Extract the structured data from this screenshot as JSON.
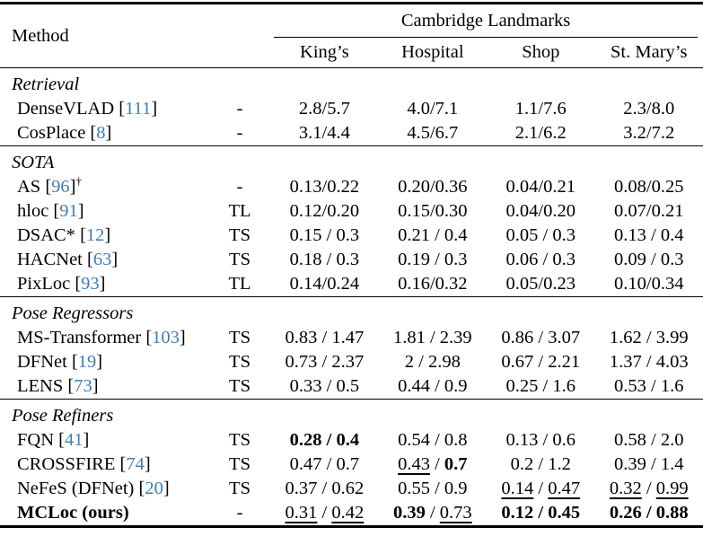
{
  "colors": {
    "citation_blue": "#3e7db7",
    "text": "#000000",
    "background": "#ffffff"
  },
  "table": {
    "header": {
      "method_label": "Method",
      "group_label": "Cambridge Landmarks",
      "columns": [
        "King’s",
        "Hospital",
        "Shop",
        "St. Mary’s"
      ]
    },
    "sections": [
      {
        "label": "Retrieval",
        "rows": [
          {
            "method": {
              "name": "DenseVLAD",
              "cite": "111"
            },
            "train": "-",
            "cells": [
              [
                {
                  "t": "2.8/5.7"
                }
              ],
              [
                {
                  "t": "4.0/7.1"
                }
              ],
              [
                {
                  "t": "1.1/7.6"
                }
              ],
              [
                {
                  "t": "2.3/8.0"
                }
              ]
            ]
          },
          {
            "method": {
              "name": "CosPlace",
              "cite": "8"
            },
            "train": "-",
            "cells": [
              [
                {
                  "t": "3.1/4.4"
                }
              ],
              [
                {
                  "t": "4.5/6.7"
                }
              ],
              [
                {
                  "t": "2.1/6.2"
                }
              ],
              [
                {
                  "t": "3.2/7.2"
                }
              ]
            ]
          }
        ]
      },
      {
        "label": "SOTA",
        "rows": [
          {
            "method": {
              "name": "AS",
              "cite": "96",
              "dagger": true
            },
            "train": "-",
            "cells": [
              [
                {
                  "t": "0.13/0.22"
                }
              ],
              [
                {
                  "t": "0.20/0.36"
                }
              ],
              [
                {
                  "t": "0.04/0.21"
                }
              ],
              [
                {
                  "t": "0.08/0.25"
                }
              ]
            ]
          },
          {
            "method": {
              "name": "hloc",
              "cite": "91"
            },
            "train": "TL",
            "cells": [
              [
                {
                  "t": "0.12/0.20"
                }
              ],
              [
                {
                  "t": "0.15/0.30"
                }
              ],
              [
                {
                  "t": "0.04/0.20"
                }
              ],
              [
                {
                  "t": "0.07/0.21"
                }
              ]
            ]
          },
          {
            "method": {
              "name": "DSAC*",
              "cite": "12"
            },
            "train": "TS",
            "cells": [
              [
                {
                  "t": "0.15 / 0.3"
                }
              ],
              [
                {
                  "t": "0.21 / 0.4"
                }
              ],
              [
                {
                  "t": "0.05 / 0.3"
                }
              ],
              [
                {
                  "t": "0.13 / 0.4"
                }
              ]
            ]
          },
          {
            "method": {
              "name": "HACNet",
              "cite": "63"
            },
            "train": "TS",
            "cells": [
              [
                {
                  "t": "0.18 / 0.3"
                }
              ],
              [
                {
                  "t": "0.19 / 0.3"
                }
              ],
              [
                {
                  "t": "0.06 / 0.3"
                }
              ],
              [
                {
                  "t": "0.09 / 0.3"
                }
              ]
            ]
          },
          {
            "method": {
              "name": "PixLoc",
              "cite": "93"
            },
            "train": "TL",
            "cells": [
              [
                {
                  "t": "0.14/0.24"
                }
              ],
              [
                {
                  "t": "0.16/0.32"
                }
              ],
              [
                {
                  "t": "0.05/0.23"
                }
              ],
              [
                {
                  "t": "0.10/0.34"
                }
              ]
            ]
          }
        ]
      },
      {
        "label": "Pose Regressors",
        "rows": [
          {
            "method": {
              "name": "MS-Transformer",
              "cite": "103"
            },
            "train": "TS",
            "cells": [
              [
                {
                  "t": "0.83 / 1.47"
                }
              ],
              [
                {
                  "t": "1.81 / 2.39"
                }
              ],
              [
                {
                  "t": "0.86 / 3.07"
                }
              ],
              [
                {
                  "t": "1.62 / 3.99"
                }
              ]
            ]
          },
          {
            "method": {
              "name": "DFNet",
              "cite": "19"
            },
            "train": "TS",
            "cells": [
              [
                {
                  "t": "0.73 / 2.37"
                }
              ],
              [
                {
                  "t": "2 / 2.98"
                }
              ],
              [
                {
                  "t": "0.67 / 2.21"
                }
              ],
              [
                {
                  "t": "1.37 / 4.03"
                }
              ]
            ]
          },
          {
            "method": {
              "name": "LENS",
              "cite": "73"
            },
            "train": "TS",
            "cells": [
              [
                {
                  "t": "0.33 / 0.5"
                }
              ],
              [
                {
                  "t": "0.44 / 0.9"
                }
              ],
              [
                {
                  "t": "0.25 / 1.6"
                }
              ],
              [
                {
                  "t": "0.53 / 1.6"
                }
              ]
            ]
          }
        ]
      },
      {
        "label": "Pose Refiners",
        "rows": [
          {
            "method": {
              "name": "FQN",
              "cite": "41"
            },
            "train": "TS",
            "cells": [
              [
                {
                  "t": "0.28 / 0.4",
                  "b": true
                }
              ],
              [
                {
                  "t": "0.54 / 0.8"
                }
              ],
              [
                {
                  "t": "0.13 / 0.6"
                }
              ],
              [
                {
                  "t": "0.58 / 2.0"
                }
              ]
            ]
          },
          {
            "method": {
              "name": "CROSSFIRE",
              "cite": "74"
            },
            "train": "TS",
            "cells": [
              [
                {
                  "t": "0.47 / 0.7"
                }
              ],
              [
                {
                  "t": "0.43",
                  "u": true
                },
                {
                  "t": " / "
                },
                {
                  "t": "0.7",
                  "b": true
                }
              ],
              [
                {
                  "t": "0.2 / 1.2"
                }
              ],
              [
                {
                  "t": "0.39 / 1.4"
                }
              ]
            ]
          },
          {
            "method": {
              "name": "NeFeS (DFNet)",
              "cite": "20"
            },
            "train": "TS",
            "cells": [
              [
                {
                  "t": "0.37 / 0.62"
                }
              ],
              [
                {
                  "t": "0.55 / 0.9"
                }
              ],
              [
                {
                  "t": "0.14",
                  "u": true
                },
                {
                  "t": " / "
                },
                {
                  "t": "0.47",
                  "u": true
                }
              ],
              [
                {
                  "t": "0.32",
                  "u": true
                },
                {
                  "t": " / "
                },
                {
                  "t": "0.99",
                  "u": true
                }
              ]
            ]
          },
          {
            "method": {
              "name": "MCLoc (ours)",
              "bold": true
            },
            "train": "-",
            "cells": [
              [
                {
                  "t": "0.31",
                  "u": true
                },
                {
                  "t": " / "
                },
                {
                  "t": "0.42",
                  "u": true
                }
              ],
              [
                {
                  "t": "0.39",
                  "b": true
                },
                {
                  "t": " / "
                },
                {
                  "t": "0.73",
                  "u": true
                }
              ],
              [
                {
                  "t": "0.12 / 0.45",
                  "b": true
                }
              ],
              [
                {
                  "t": "0.26 / 0.88",
                  "b": true
                }
              ]
            ]
          }
        ]
      }
    ]
  }
}
